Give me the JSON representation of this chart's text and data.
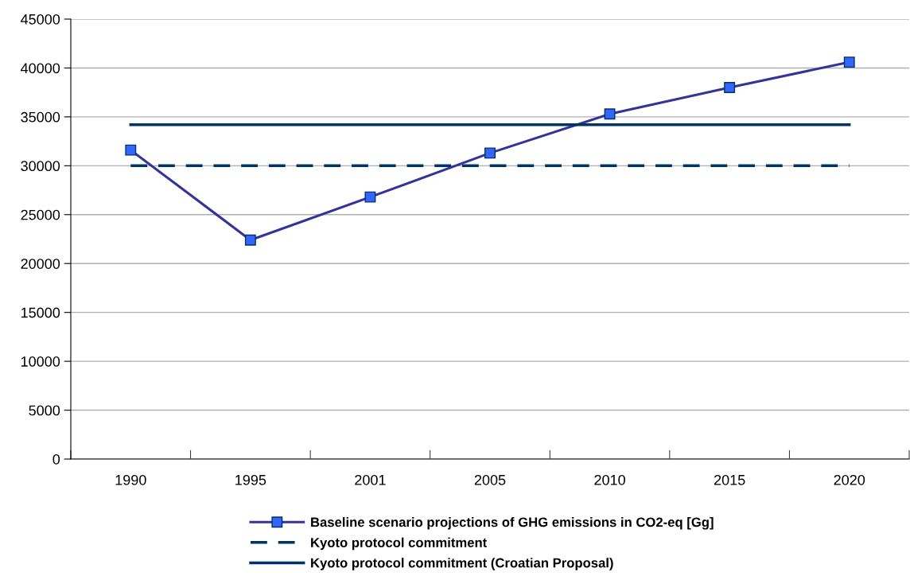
{
  "chart_data": {
    "type": "line",
    "categories": [
      "1990",
      "1995",
      "2001",
      "2005",
      "2010",
      "2015",
      "2020"
    ],
    "ylim": [
      0,
      45000
    ],
    "yticks": [
      0,
      5000,
      10000,
      15000,
      20000,
      25000,
      30000,
      35000,
      40000,
      45000
    ],
    "grid": "y",
    "legend": "bottom",
    "series": [
      {
        "name": "Baseline scenario projections of GHG emissions in CO2-eq [Gg]",
        "color": "#333399",
        "marker": "square",
        "line_style": "solid",
        "values": [
          31600,
          22400,
          26800,
          31300,
          35300,
          38000,
          40600
        ]
      },
      {
        "name": "Kyoto protocol commitment",
        "color": "#003366",
        "marker": "none",
        "line_style": "dashed",
        "values": [
          30000,
          30000,
          30000,
          30000,
          30000,
          30000,
          30000
        ]
      },
      {
        "name": "Kyoto protocol commitment (Croatian Proposal)",
        "color": "#003366",
        "marker": "none",
        "line_style": "solid",
        "values": [
          34200,
          34200,
          34200,
          34200,
          34200,
          34200,
          34200
        ]
      }
    ]
  }
}
